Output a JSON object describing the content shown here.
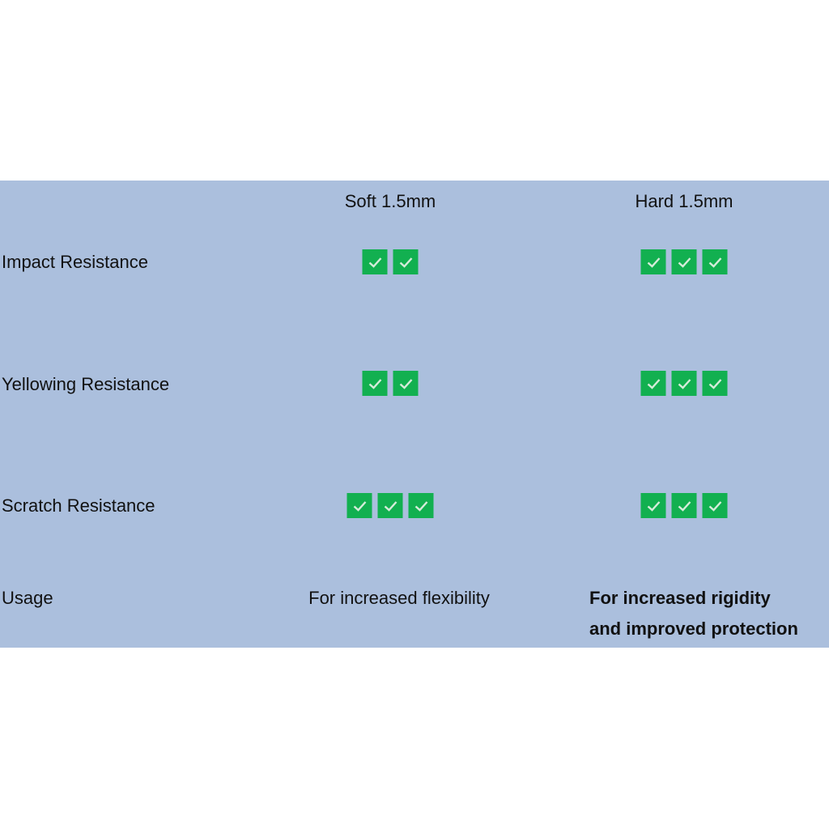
{
  "columns": [
    "Soft 1.5mm",
    "Hard 1.5mm"
  ],
  "rows": [
    {
      "label": "Impact Resistance",
      "soft": 2,
      "hard": 3
    },
    {
      "label": "Yellowing Resistance",
      "soft": 2,
      "hard": 3
    },
    {
      "label": "Scratch Resistance",
      "soft": 3,
      "hard": 3
    }
  ],
  "usage": {
    "label": "Usage",
    "soft": "For increased flexibility",
    "hard_line1": "For increased rigidity",
    "hard_line2": "and improved protection"
  },
  "colors": {
    "background": "#abbfdd",
    "check": "#12b050"
  },
  "icon": "checkmark-icon"
}
